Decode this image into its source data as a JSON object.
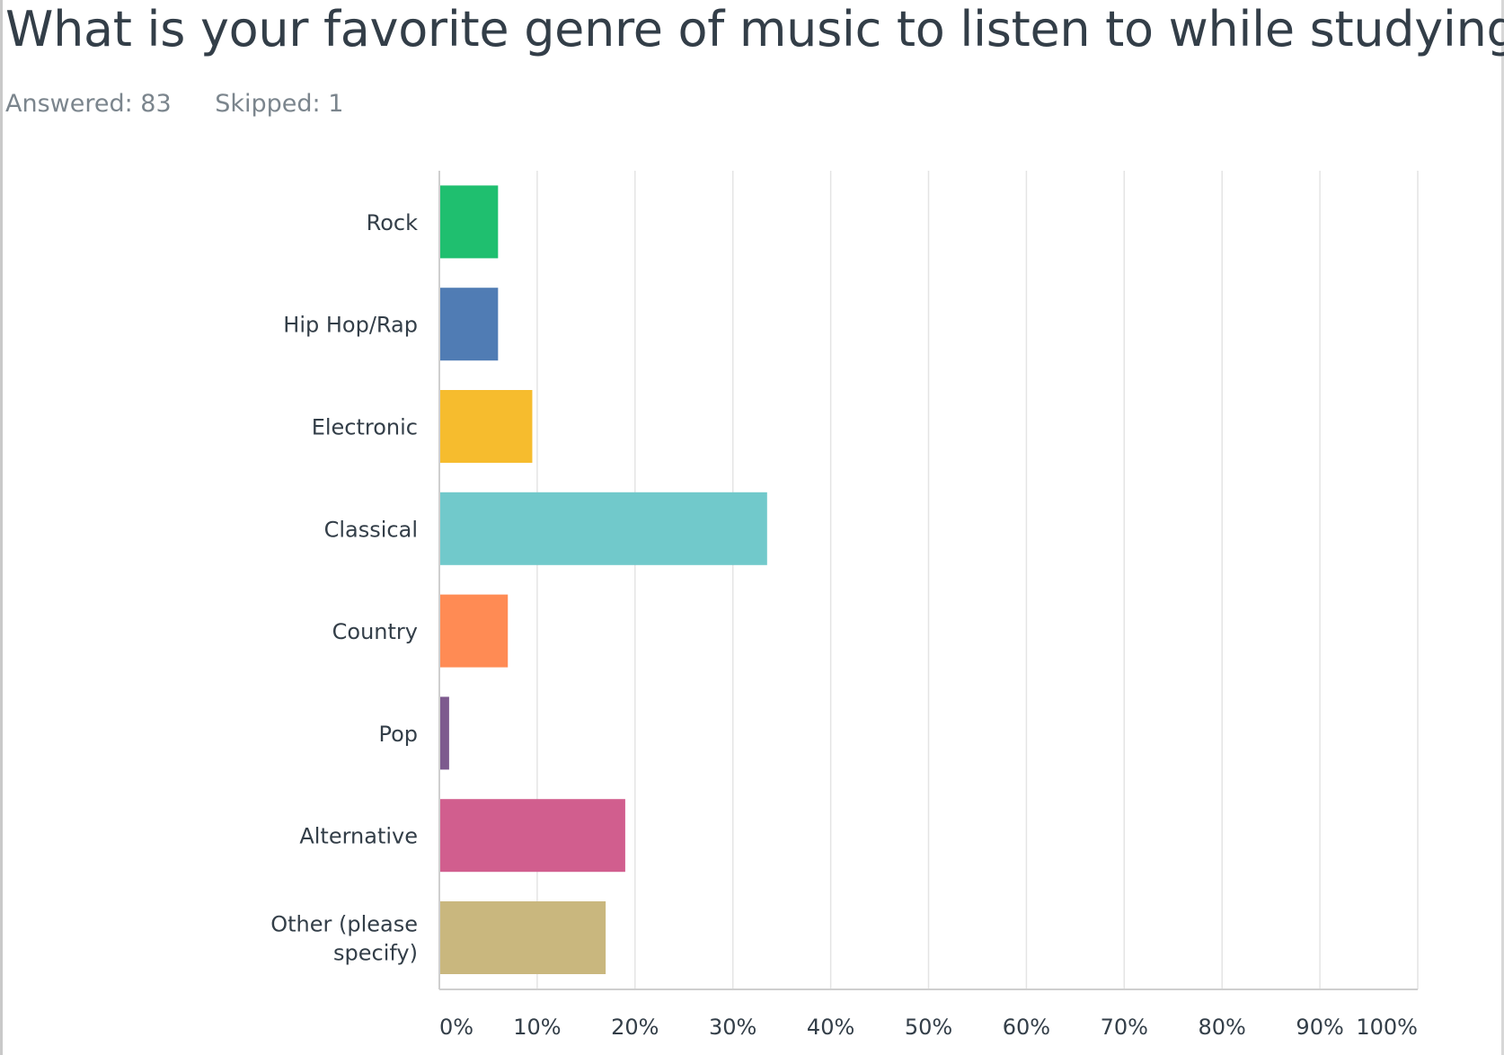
{
  "question": {
    "title": "What is your favorite genre of music to listen to while studying?",
    "answered_label": "Answered: 83",
    "skipped_label": "Skipped: 1"
  },
  "chart_data": {
    "type": "bar",
    "orientation": "horizontal",
    "categories": [
      "Rock",
      "Hip Hop/Rap",
      "Electronic",
      "Classical",
      "Country",
      "Pop",
      "Alternative",
      "Other (please specify)"
    ],
    "category_lines": [
      [
        "Rock"
      ],
      [
        "Hip Hop/Rap"
      ],
      [
        "Electronic"
      ],
      [
        "Classical"
      ],
      [
        "Country"
      ],
      [
        "Pop"
      ],
      [
        "Alternative"
      ],
      [
        "Other (please",
        "specify)"
      ]
    ],
    "values": [
      6,
      6,
      9.5,
      33.5,
      7,
      1,
      19,
      17
    ],
    "colors": [
      "#1fbf6f",
      "#507cb4",
      "#f6bc2e",
      "#71c9cb",
      "#ff8b54",
      "#7d5a8e",
      "#d15e8e",
      "#c9b77e"
    ],
    "xlim": [
      0,
      100
    ],
    "xticks": [
      "0%",
      "10%",
      "20%",
      "30%",
      "40%",
      "50%",
      "60%",
      "70%",
      "80%",
      "90%",
      "100%"
    ],
    "grid": true,
    "title": "",
    "xlabel": "",
    "ylabel": ""
  }
}
